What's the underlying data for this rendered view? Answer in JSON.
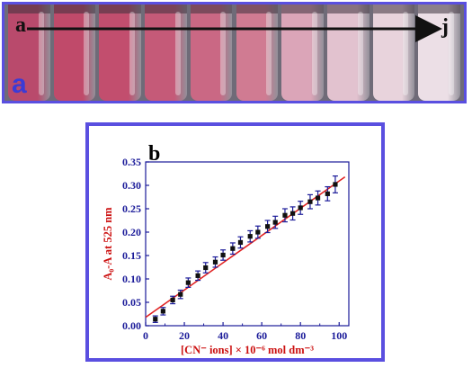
{
  "photo": {
    "panel_label": "a",
    "start_label": "a",
    "end_label": "j",
    "vial_colors": [
      "#b94a6c",
      "#c04a6a",
      "#c24e6e",
      "#c55a78",
      "#ca6884",
      "#d07b92",
      "#dba5b8",
      "#e2c2cf",
      "#e8d3dc",
      "#ecdfe6"
    ]
  },
  "chart_data": {
    "type": "scatter",
    "panel_label": "b",
    "xlabel": "[CN⁻ ions] × 10⁻⁶ mol dm⁻³",
    "ylabel": "A₀-A at 525 nm",
    "xlim": [
      0,
      105
    ],
    "ylim": [
      0,
      0.35
    ],
    "xticks": [
      0,
      20,
      40,
      60,
      80,
      100
    ],
    "yticks": [
      0.0,
      0.05,
      0.1,
      0.15,
      0.2,
      0.25,
      0.3,
      0.35
    ],
    "xtick_labels": [
      "0",
      "20",
      "40",
      "60",
      "80",
      "100"
    ],
    "ytick_labels": [
      "0.00",
      "0.05",
      "0.10",
      "0.15",
      "0.20",
      "0.25",
      "0.30",
      "0.35"
    ],
    "points": {
      "x": [
        5,
        9,
        14,
        18,
        22,
        27,
        31,
        36,
        40,
        45,
        49,
        54,
        58,
        63,
        67,
        72,
        76,
        80,
        85,
        89,
        94,
        98
      ],
      "y": [
        0.014,
        0.031,
        0.055,
        0.067,
        0.092,
        0.107,
        0.124,
        0.136,
        0.151,
        0.165,
        0.178,
        0.191,
        0.2,
        0.212,
        0.221,
        0.236,
        0.24,
        0.252,
        0.265,
        0.273,
        0.282,
        0.302
      ],
      "yerr": [
        0.007,
        0.008,
        0.008,
        0.009,
        0.01,
        0.01,
        0.011,
        0.011,
        0.011,
        0.012,
        0.012,
        0.012,
        0.013,
        0.013,
        0.013,
        0.014,
        0.014,
        0.014,
        0.015,
        0.015,
        0.015,
        0.018
      ]
    },
    "fit_line": {
      "x": [
        0,
        103
      ],
      "y": [
        0.018,
        0.318
      ]
    },
    "colors": {
      "points": "#111111",
      "error_bars": "#1a1a99",
      "fit_line": "#e02222",
      "axis": "#1a1a99",
      "axis_title": "#cc1111",
      "frame": "#5a4fe0"
    }
  }
}
